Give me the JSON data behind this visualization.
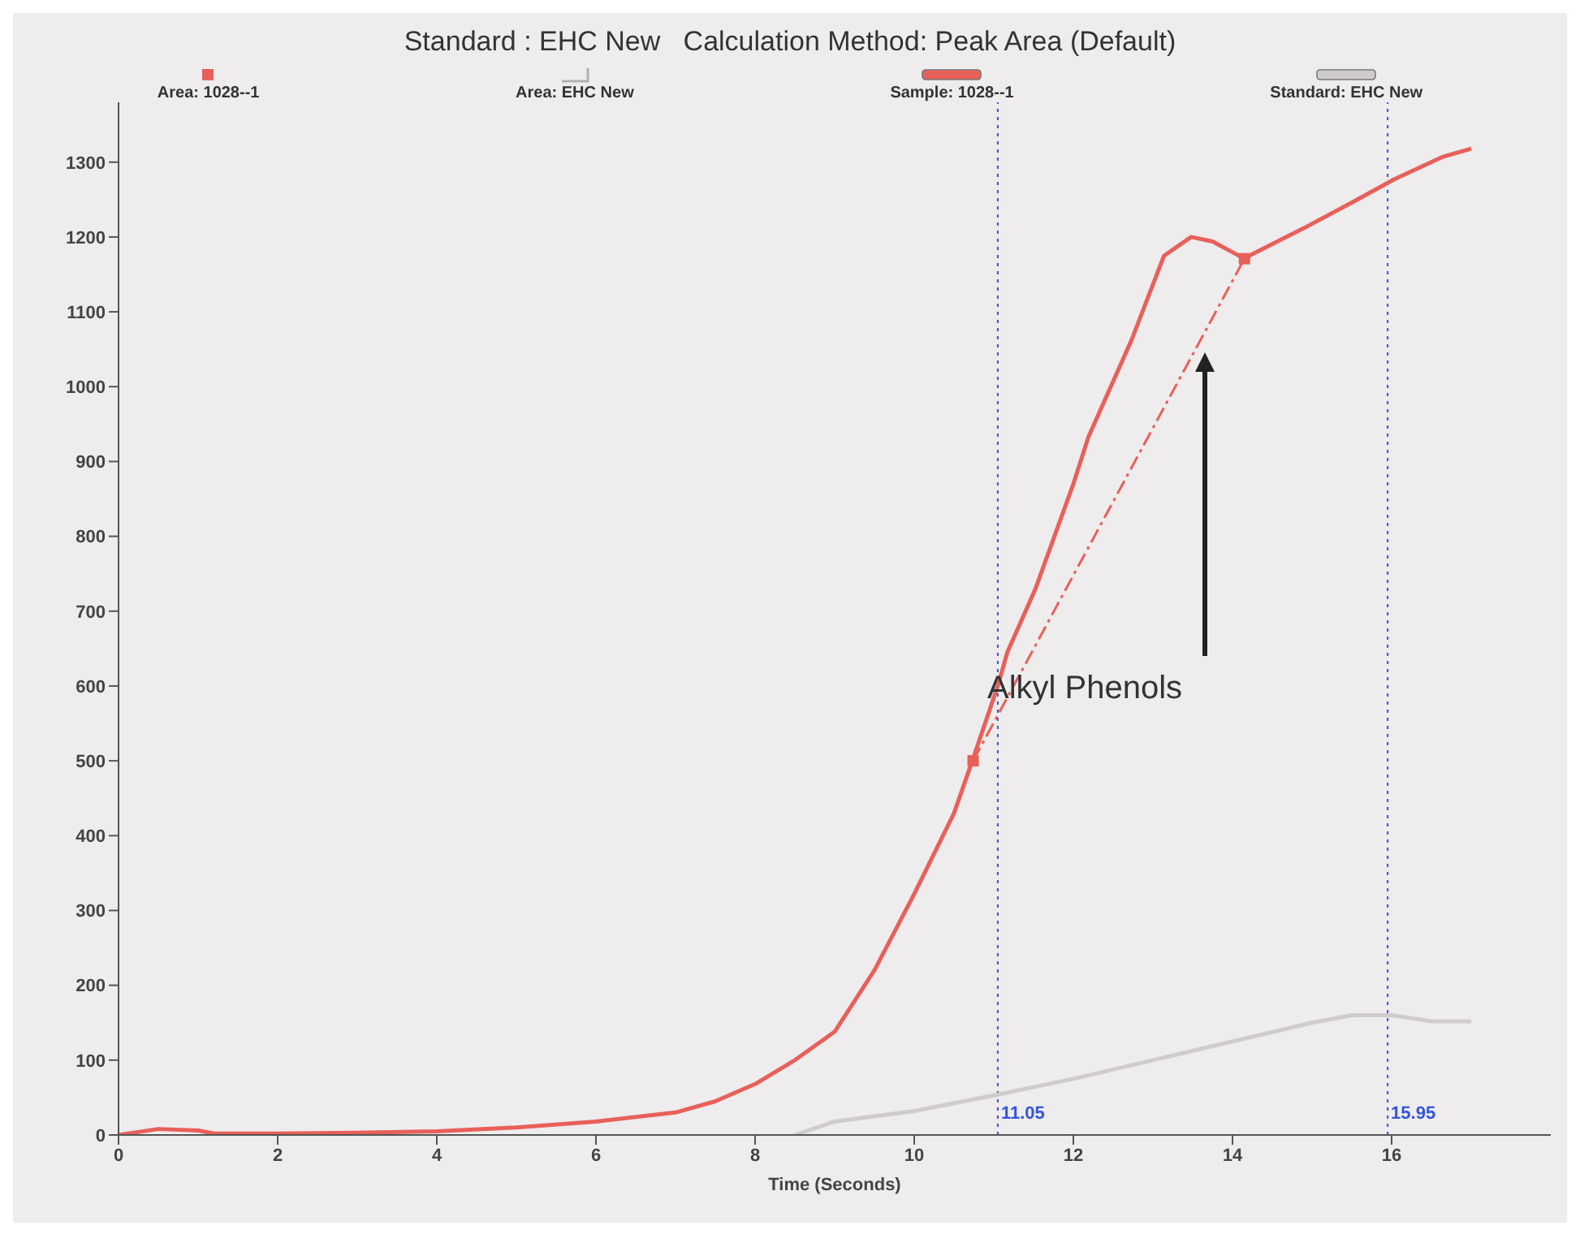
{
  "chart_data": {
    "type": "line",
    "title": "Standard : EHC New   Calculation Method: Peak Area (Default)",
    "xlabel": "Time (Seconds)",
    "xlim": [
      0,
      18
    ],
    "ylim": [
      0,
      1380
    ],
    "xticks": [
      0,
      2,
      4,
      6,
      8,
      10,
      12,
      14,
      16
    ],
    "yticks": [
      0,
      100,
      200,
      300,
      400,
      500,
      600,
      700,
      800,
      900,
      1000,
      1100,
      1200,
      1300
    ],
    "grid": false,
    "legend": "top",
    "series": [
      {
        "name": "Area: 1028--1",
        "color": "#e8605a",
        "line_style": "dashed",
        "marker": "square",
        "x": [
          10.74,
          14.15
        ],
        "values": [
          500,
          1171
        ]
      },
      {
        "name": "Area: EHC New",
        "color": "#b0b0b0",
        "line_style": "dashed",
        "marker": "none"
      },
      {
        "name": "Sample: 1028--1",
        "color": "#e8605a",
        "line_style": "solid",
        "marker": "none",
        "x": [
          0,
          0.5,
          1,
          1.2,
          2,
          3,
          4,
          5,
          6,
          7,
          7.5,
          8,
          8.5,
          9,
          9.5,
          10,
          10.5,
          10.74,
          11.05,
          11.17,
          11.52,
          12,
          12.19,
          12.73,
          13.14,
          13.48,
          13.75,
          14.15,
          14.21,
          14.9,
          15.57,
          16.03,
          16.64,
          17
        ],
        "values": [
          0,
          8,
          6,
          2,
          2,
          3,
          5,
          10,
          18,
          30,
          45,
          68,
          100,
          138,
          220,
          322,
          430,
          503,
          600,
          645,
          729,
          870,
          933,
          1062,
          1175,
          1200,
          1194,
          1171,
          1175,
          1212,
          1250,
          1277,
          1307,
          1318
        ]
      },
      {
        "name": "Standard: EHC New",
        "color": "#d0cccc",
        "line_style": "solid",
        "marker": "none",
        "x": [
          8.5,
          9,
          10,
          11.05,
          12,
          13,
          14,
          15,
          15.5,
          16,
          16.5,
          17
        ],
        "values": [
          0,
          18,
          32,
          54,
          75,
          100,
          125,
          150,
          160,
          160,
          152,
          152
        ]
      }
    ],
    "ref_lines": [
      {
        "axis": "x",
        "value": 11.05,
        "label": "11.05",
        "color": "#3355dd",
        "line_style": "dotted"
      },
      {
        "axis": "x",
        "value": 15.95,
        "label": "15.95",
        "color": "#3355dd",
        "line_style": "dotted"
      }
    ],
    "annotations": [
      "Alkyl Phenols"
    ]
  }
}
